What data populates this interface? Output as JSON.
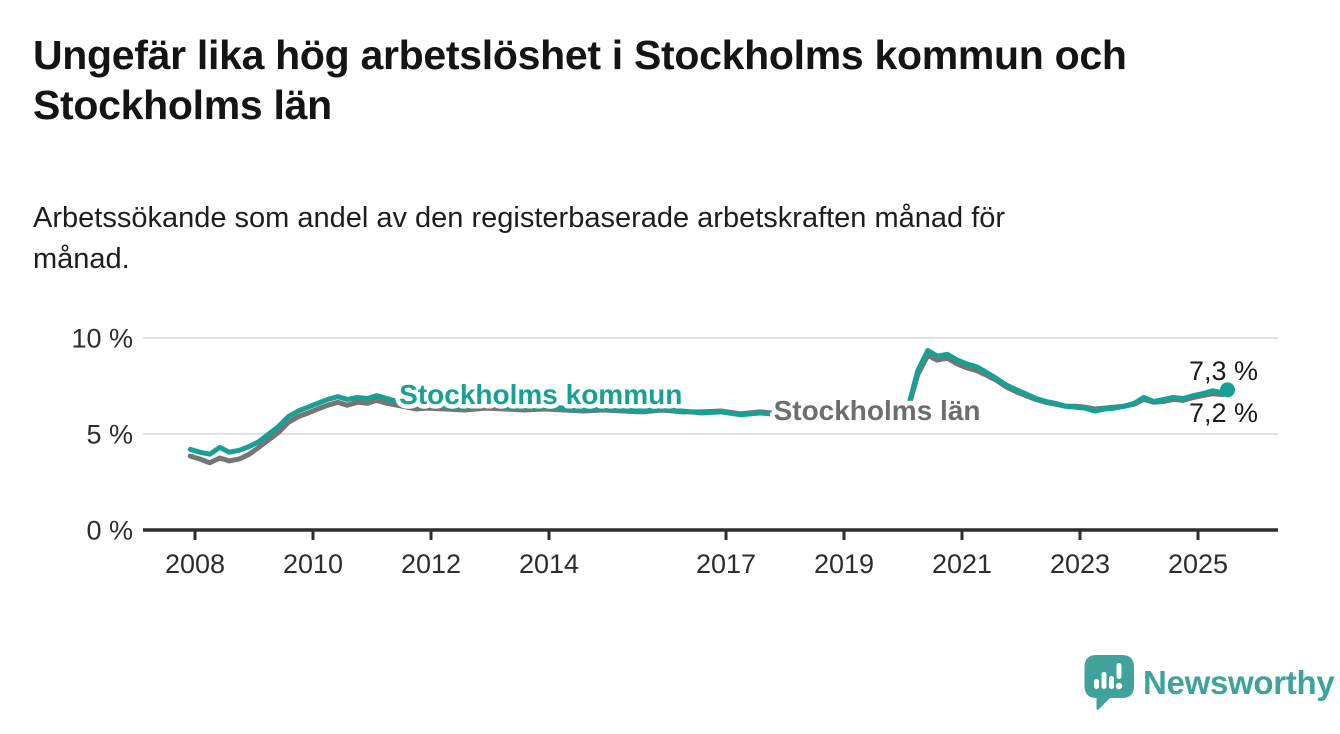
{
  "header": {
    "title": "Ungefär lika hög arbetslöshet i Stockholms kommun och Stockholms län",
    "subtitle": "Arbetssökande som andel av den registerbaserade arbetskraften månad för månad."
  },
  "chart_data": {
    "type": "line",
    "title": "Ungefär lika hög arbetslöshet i Stockholms kommun och Stockholms län",
    "subtitle": "Arbetssökande som andel av den registerbaserade arbetskraften månad för månad.",
    "unit": "%",
    "grid": "horizontal-only",
    "legend": "inline-labels-on-lines",
    "ylim": [
      0,
      11.5
    ],
    "xlim": [
      2007.1,
      2026.3
    ],
    "y_ticks": [
      {
        "value": 0,
        "label": "0 %"
      },
      {
        "value": 5,
        "label": "5 %"
      },
      {
        "value": 10,
        "label": "10 %"
      }
    ],
    "x_ticks": [
      {
        "year": 2008,
        "label": "2008"
      },
      {
        "year": 2010,
        "label": "2010"
      },
      {
        "year": 2012,
        "label": "2012"
      },
      {
        "year": 2014,
        "label": "2014"
      },
      {
        "year": 2017,
        "label": "2017"
      },
      {
        "year": 2019,
        "label": "2019"
      },
      {
        "year": 2021,
        "label": "2021"
      },
      {
        "year": 2023,
        "label": "2023"
      },
      {
        "year": 2025,
        "label": "2025"
      }
    ],
    "series": [
      {
        "name": "Stockholms kommun",
        "color": "#17a093",
        "end_label": "7,3 %",
        "marker_end": true,
        "points": [
          [
            2007.92,
            4.2
          ],
          [
            2008.08,
            4.05
          ],
          [
            2008.25,
            3.95
          ],
          [
            2008.42,
            4.3
          ],
          [
            2008.58,
            4.05
          ],
          [
            2008.75,
            4.15
          ],
          [
            2008.92,
            4.35
          ],
          [
            2009.08,
            4.6
          ],
          [
            2009.25,
            5.0
          ],
          [
            2009.42,
            5.4
          ],
          [
            2009.58,
            5.9
          ],
          [
            2009.75,
            6.2
          ],
          [
            2009.92,
            6.4
          ],
          [
            2010.08,
            6.6
          ],
          [
            2010.25,
            6.8
          ],
          [
            2010.42,
            6.95
          ],
          [
            2010.58,
            6.8
          ],
          [
            2010.75,
            6.9
          ],
          [
            2010.92,
            6.85
          ],
          [
            2011.08,
            7.0
          ],
          [
            2011.25,
            6.85
          ],
          [
            2011.42,
            6.7
          ],
          [
            2011.58,
            6.6
          ],
          [
            2011.75,
            6.5
          ],
          [
            2011.92,
            6.55
          ],
          [
            2012.25,
            6.45
          ],
          [
            2012.58,
            6.4
          ],
          [
            2012.92,
            6.5
          ],
          [
            2013.25,
            6.45
          ],
          [
            2013.58,
            6.4
          ],
          [
            2013.92,
            6.45
          ],
          [
            2014.25,
            6.35
          ],
          [
            2014.58,
            6.3
          ],
          [
            2014.92,
            6.35
          ],
          [
            2015.25,
            6.25
          ],
          [
            2015.58,
            6.2
          ],
          [
            2015.92,
            6.3
          ],
          [
            2016.25,
            6.2
          ],
          [
            2016.58,
            6.1
          ],
          [
            2016.92,
            6.15
          ],
          [
            2017.25,
            6.0
          ],
          [
            2017.58,
            6.1
          ],
          [
            2017.92,
            6.0
          ],
          [
            2018.25,
            5.95
          ],
          [
            2018.58,
            6.0
          ],
          [
            2018.92,
            5.95
          ],
          [
            2019.25,
            5.9
          ],
          [
            2019.58,
            5.95
          ],
          [
            2019.92,
            6.1
          ],
          [
            2020.08,
            6.3
          ],
          [
            2020.25,
            8.3
          ],
          [
            2020.42,
            9.35
          ],
          [
            2020.58,
            9.05
          ],
          [
            2020.75,
            9.15
          ],
          [
            2020.92,
            8.85
          ],
          [
            2021.08,
            8.65
          ],
          [
            2021.25,
            8.5
          ],
          [
            2021.42,
            8.2
          ],
          [
            2021.58,
            7.9
          ],
          [
            2021.75,
            7.55
          ],
          [
            2021.92,
            7.3
          ],
          [
            2022.08,
            7.1
          ],
          [
            2022.25,
            6.85
          ],
          [
            2022.42,
            6.7
          ],
          [
            2022.58,
            6.6
          ],
          [
            2022.75,
            6.45
          ],
          [
            2022.92,
            6.4
          ],
          [
            2023.08,
            6.35
          ],
          [
            2023.25,
            6.2
          ],
          [
            2023.42,
            6.3
          ],
          [
            2023.58,
            6.35
          ],
          [
            2023.75,
            6.45
          ],
          [
            2023.92,
            6.6
          ],
          [
            2024.08,
            6.9
          ],
          [
            2024.25,
            6.7
          ],
          [
            2024.42,
            6.8
          ],
          [
            2024.58,
            6.9
          ],
          [
            2024.75,
            6.85
          ],
          [
            2024.92,
            7.0
          ],
          [
            2025.08,
            7.1
          ],
          [
            2025.25,
            7.25
          ],
          [
            2025.42,
            7.15
          ],
          [
            2025.5,
            7.3
          ]
        ]
      },
      {
        "name": "Stockholms län",
        "color": "#757575",
        "end_label": "7,2 %",
        "marker_end": false,
        "points": [
          [
            2007.92,
            3.85
          ],
          [
            2008.08,
            3.7
          ],
          [
            2008.25,
            3.5
          ],
          [
            2008.42,
            3.75
          ],
          [
            2008.58,
            3.6
          ],
          [
            2008.75,
            3.7
          ],
          [
            2008.92,
            3.95
          ],
          [
            2009.08,
            4.3
          ],
          [
            2009.25,
            4.7
          ],
          [
            2009.42,
            5.1
          ],
          [
            2009.58,
            5.6
          ],
          [
            2009.75,
            5.9
          ],
          [
            2009.92,
            6.1
          ],
          [
            2010.08,
            6.3
          ],
          [
            2010.25,
            6.5
          ],
          [
            2010.42,
            6.65
          ],
          [
            2010.58,
            6.5
          ],
          [
            2010.75,
            6.65
          ],
          [
            2010.92,
            6.6
          ],
          [
            2011.08,
            6.75
          ],
          [
            2011.25,
            6.6
          ],
          [
            2011.42,
            6.5
          ],
          [
            2011.58,
            6.4
          ],
          [
            2011.75,
            6.3
          ],
          [
            2011.92,
            6.35
          ],
          [
            2012.25,
            6.3
          ],
          [
            2012.58,
            6.25
          ],
          [
            2012.92,
            6.35
          ],
          [
            2013.25,
            6.3
          ],
          [
            2013.58,
            6.25
          ],
          [
            2013.92,
            6.3
          ],
          [
            2014.25,
            6.25
          ],
          [
            2014.58,
            6.2
          ],
          [
            2014.92,
            6.25
          ],
          [
            2015.25,
            6.2
          ],
          [
            2015.58,
            6.15
          ],
          [
            2015.92,
            6.25
          ],
          [
            2016.25,
            6.15
          ],
          [
            2016.58,
            6.15
          ],
          [
            2016.92,
            6.2
          ],
          [
            2017.25,
            6.05
          ],
          [
            2017.58,
            6.15
          ],
          [
            2017.92,
            6.05
          ],
          [
            2018.25,
            6.0
          ],
          [
            2018.58,
            6.05
          ],
          [
            2018.92,
            6.0
          ],
          [
            2019.25,
            5.9
          ],
          [
            2019.58,
            5.95
          ],
          [
            2019.92,
            6.05
          ],
          [
            2020.08,
            6.25
          ],
          [
            2020.25,
            8.1
          ],
          [
            2020.42,
            9.1
          ],
          [
            2020.58,
            8.85
          ],
          [
            2020.75,
            8.95
          ],
          [
            2020.92,
            8.65
          ],
          [
            2021.08,
            8.45
          ],
          [
            2021.25,
            8.3
          ],
          [
            2021.42,
            8.05
          ],
          [
            2021.58,
            7.8
          ],
          [
            2021.75,
            7.45
          ],
          [
            2021.92,
            7.2
          ],
          [
            2022.08,
            7.0
          ],
          [
            2022.25,
            6.8
          ],
          [
            2022.42,
            6.65
          ],
          [
            2022.58,
            6.55
          ],
          [
            2022.75,
            6.45
          ],
          [
            2022.92,
            6.45
          ],
          [
            2023.08,
            6.4
          ],
          [
            2023.25,
            6.3
          ],
          [
            2023.42,
            6.35
          ],
          [
            2023.58,
            6.4
          ],
          [
            2023.75,
            6.45
          ],
          [
            2023.92,
            6.55
          ],
          [
            2024.08,
            6.8
          ],
          [
            2024.25,
            6.65
          ],
          [
            2024.42,
            6.7
          ],
          [
            2024.58,
            6.8
          ],
          [
            2024.75,
            6.75
          ],
          [
            2024.92,
            6.9
          ],
          [
            2025.08,
            7.0
          ],
          [
            2025.25,
            7.1
          ],
          [
            2025.42,
            7.05
          ],
          [
            2025.5,
            7.2
          ]
        ]
      }
    ],
    "annotations": [
      {
        "text": "Stockholms kommun",
        "x": 2013.86,
        "y": 6.56,
        "color": "#17a093"
      },
      {
        "text": "Stockholms län",
        "x": 2019.56,
        "y": 5.73,
        "color": "#6d6d6d"
      }
    ]
  },
  "colors": {
    "kommun_line": "#17a093",
    "lan_line": "#757575",
    "gridline": "#d9d9d9",
    "axis": "#2d2d2d",
    "brand_teal": "#3fa39c"
  },
  "footer": {
    "brand": "Newsworthy"
  }
}
